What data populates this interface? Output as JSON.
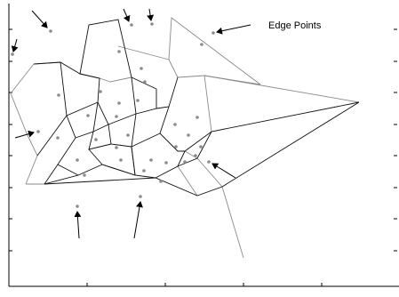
{
  "annotation": {
    "label": "Edge Points"
  },
  "legend_colors": {
    "inner_edges": "#111111",
    "outer_edges": "#8a8a8a",
    "sites": "#8c8c8c",
    "arrows": "#000000"
  }
}
